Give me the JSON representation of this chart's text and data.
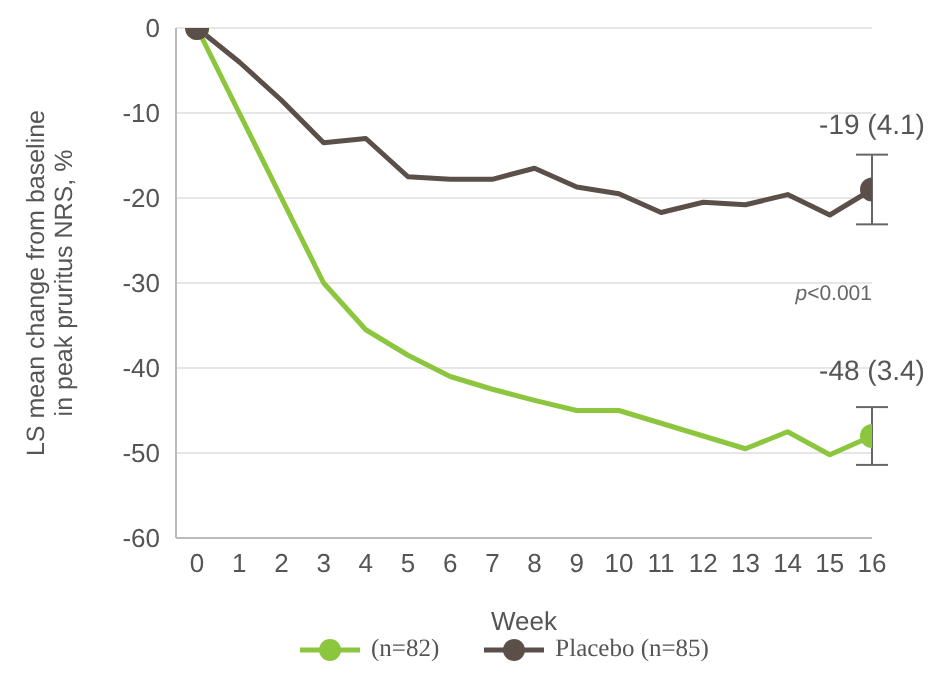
{
  "chart_data": {
    "type": "line",
    "xlabel": "Week",
    "ylabel": "LS mean change from baseline in peak pruritus NRS, %",
    "x": [
      0,
      1,
      2,
      3,
      4,
      5,
      6,
      7,
      8,
      9,
      10,
      11,
      12,
      13,
      14,
      15,
      16
    ],
    "series": [
      {
        "name": "(n=82)",
        "color": "#8cc63f",
        "values": [
          0,
          -10,
          -20,
          -30,
          -35.5,
          -38.5,
          -41,
          -42.5,
          -43.8,
          -45,
          -45,
          -46.5,
          -48,
          -49.5,
          -47.5,
          -50.2,
          -48
        ],
        "errors": [
          null,
          null,
          null,
          null,
          null,
          null,
          null,
          null,
          null,
          null,
          null,
          null,
          null,
          null,
          null,
          null,
          3.4
        ],
        "value_labels": [
          null,
          null,
          null,
          null,
          null,
          null,
          null,
          null,
          null,
          null,
          null,
          null,
          null,
          null,
          null,
          null,
          "-48 (3.4)"
        ]
      },
      {
        "name": "Placebo (n=85)",
        "color": "#5b4f4a",
        "values": [
          0,
          -4,
          -8.5,
          -13.5,
          -13,
          -17.5,
          -17.8,
          -17.8,
          -16.5,
          -18.7,
          -19.5,
          -21.7,
          -20.5,
          -20.8,
          -19.6,
          -22,
          -19
        ],
        "errors": [
          null,
          null,
          null,
          null,
          null,
          null,
          null,
          null,
          null,
          null,
          null,
          null,
          null,
          null,
          null,
          null,
          4.1
        ],
        "value_labels": [
          null,
          null,
          null,
          null,
          null,
          null,
          null,
          null,
          null,
          null,
          null,
          null,
          null,
          null,
          null,
          null,
          "-19 (4.1)"
        ]
      }
    ],
    "annotations": [
      "p<0.001"
    ],
    "xlim": [
      -0.5,
      16
    ],
    "xticks": [
      0,
      1,
      2,
      3,
      4,
      5,
      6,
      7,
      8,
      9,
      10,
      11,
      12,
      13,
      14,
      15,
      16
    ],
    "ylim": [
      -60,
      0
    ],
    "yticks": [
      0,
      -10,
      -20,
      -30,
      -40,
      -50,
      -60
    ],
    "grid": "y",
    "legend": "bottom",
    "line_style": "solid"
  }
}
